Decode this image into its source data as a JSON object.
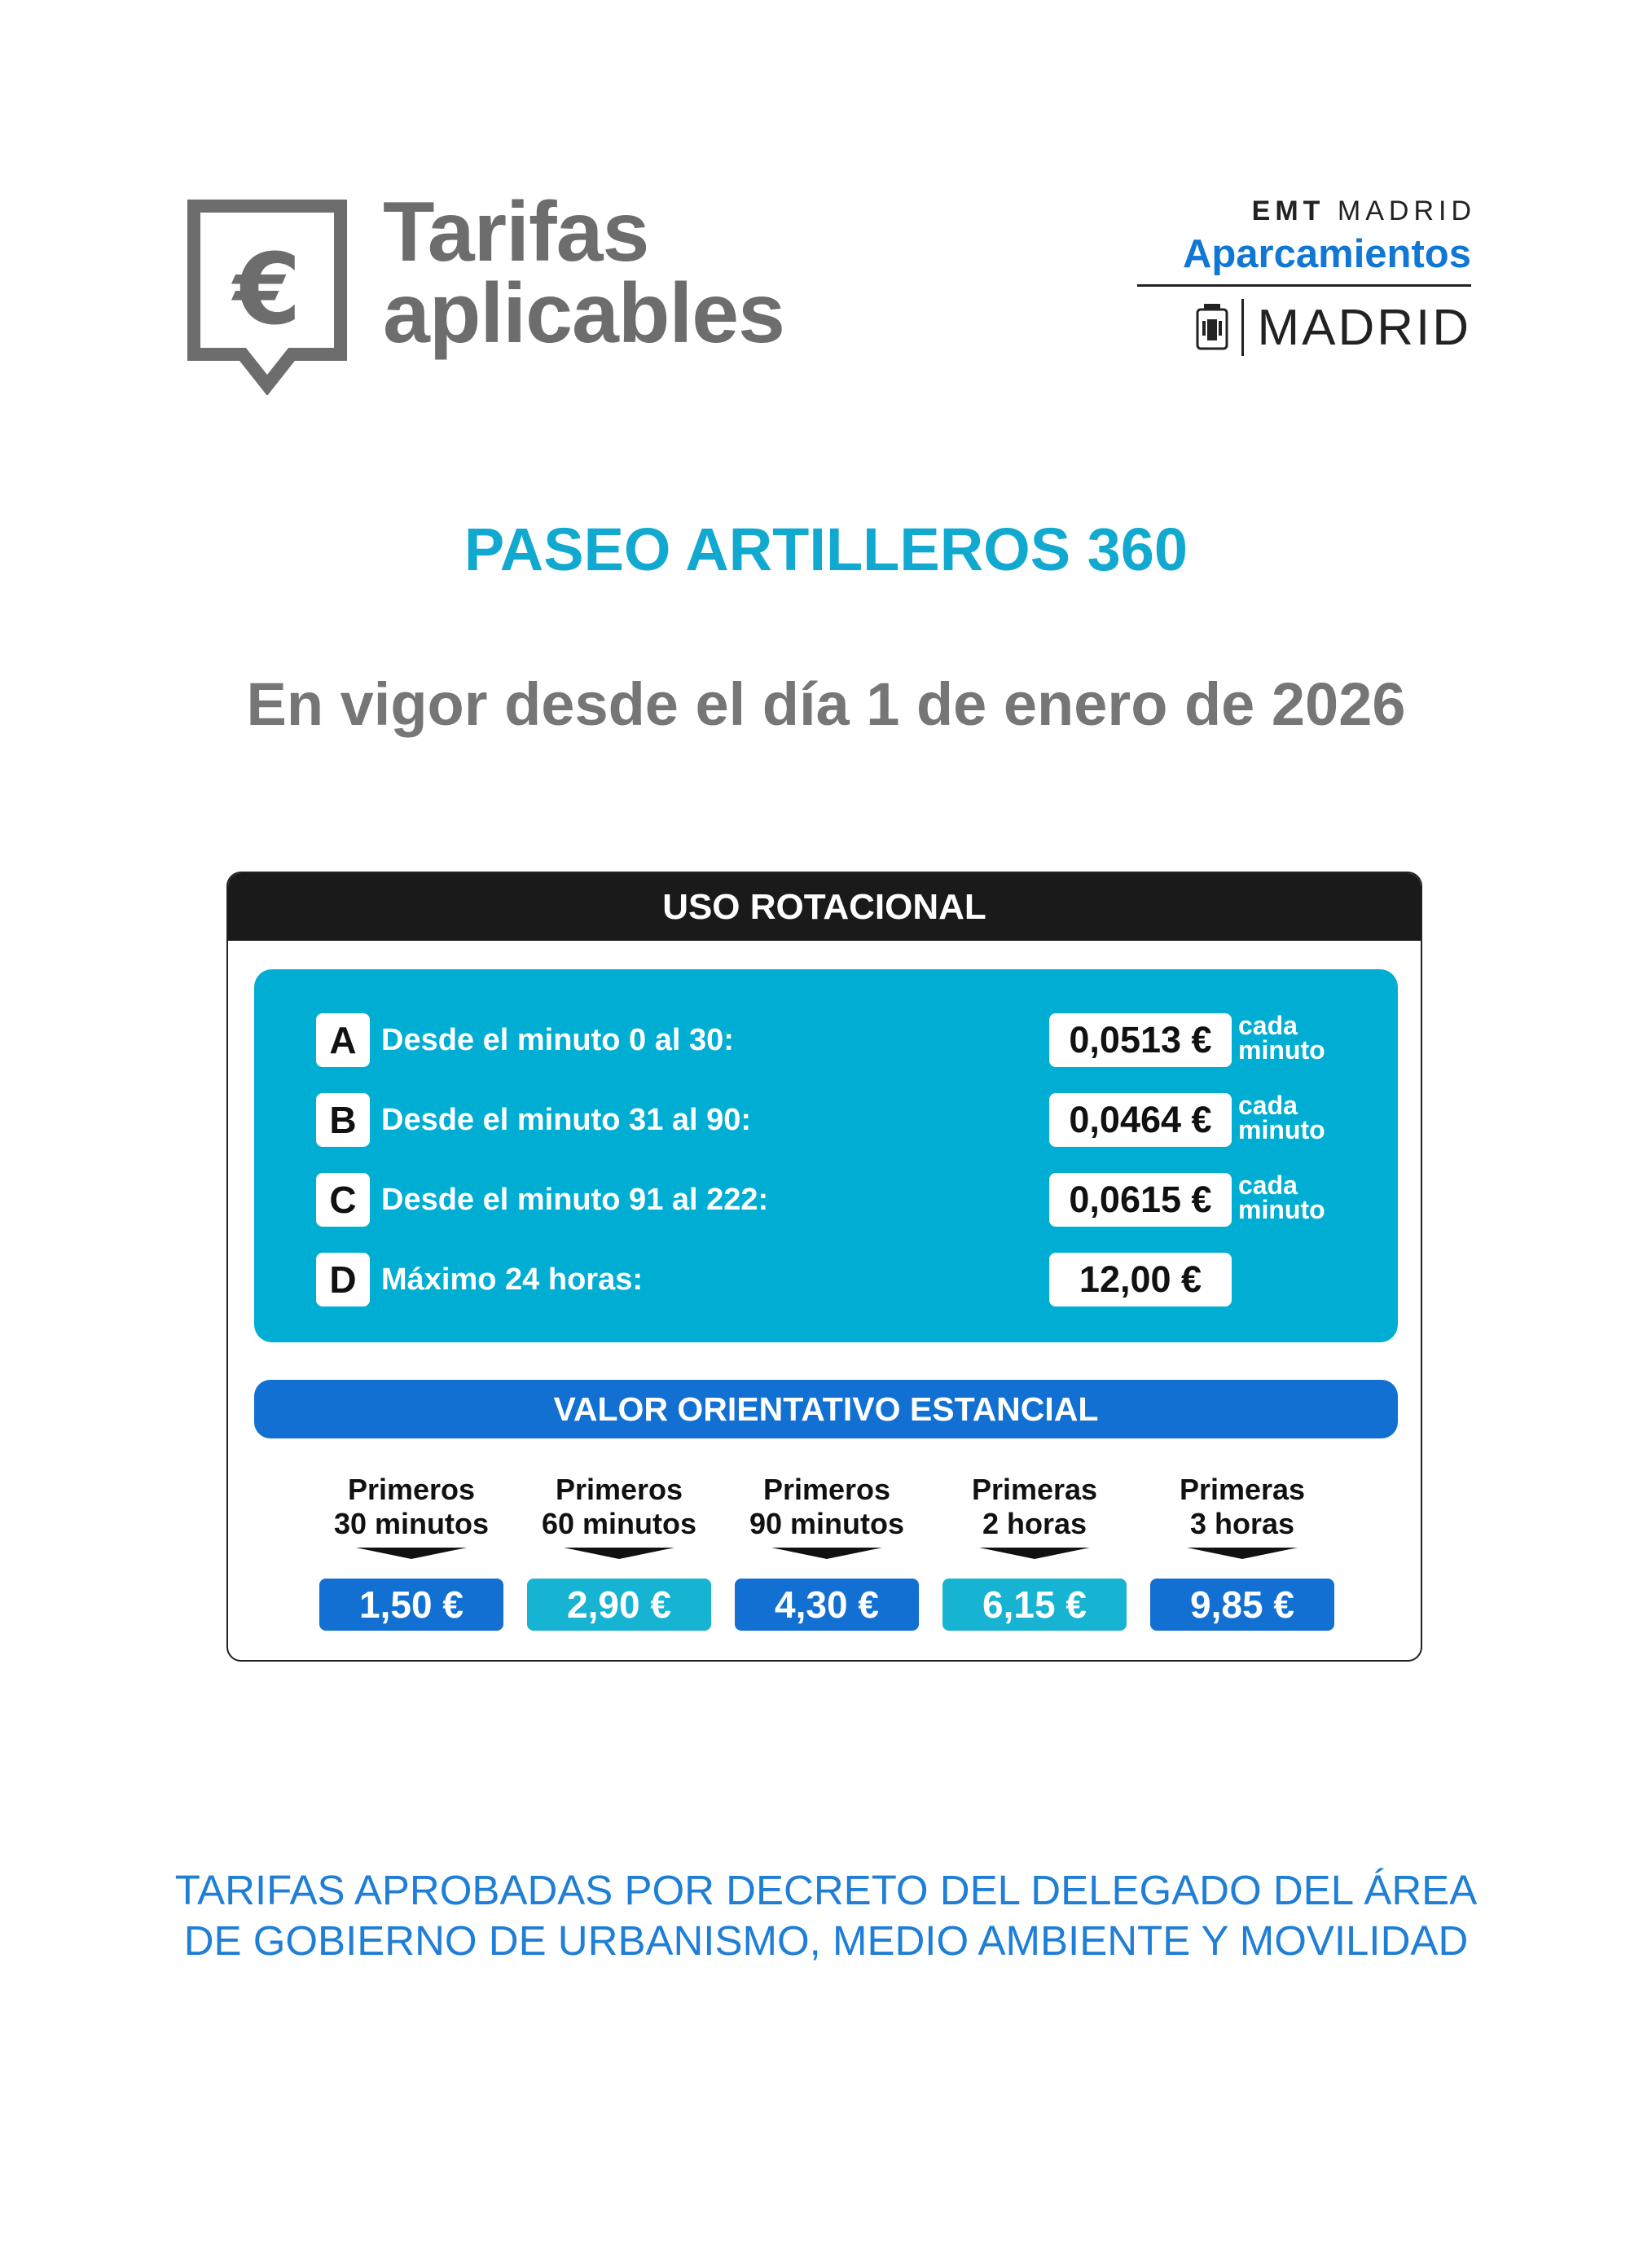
{
  "header": {
    "title_line1": "Tarifas",
    "title_line2": "aplicables",
    "icon": "euro-sign-icon",
    "emt_bold": "EMT",
    "emt_light": "MADRID",
    "aparcamientos": "Aparcamientos",
    "madrid": "MADRID",
    "crest_icon": "madrid-crest-icon"
  },
  "location": "PASEO ARTILLEROS 360",
  "vigor": "En vigor desde el día 1 de enero de 2026",
  "rotacional": {
    "title": "USO ROTACIONAL",
    "rows": [
      {
        "letter": "A",
        "label": "Desde el minuto 0 al 30:",
        "price": "0,0513 €",
        "unit_line1": "cada",
        "unit_line2": "minuto"
      },
      {
        "letter": "B",
        "label": "Desde el minuto 31 al 90:",
        "price": "0,0464 €",
        "unit_line1": "cada",
        "unit_line2": "minuto"
      },
      {
        "letter": "C",
        "label": "Desde el minuto 91 al 222:",
        "price": "0,0615 €",
        "unit_line1": "cada",
        "unit_line2": "minuto"
      },
      {
        "letter": "D",
        "label": "Máximo 24 horas:",
        "price": "12,00 €",
        "unit_line1": "",
        "unit_line2": ""
      }
    ]
  },
  "valor": {
    "title": "VALOR ORIENTATIVO ESTANCIAL",
    "items": [
      {
        "line1": "Primeros",
        "line2": "30 minutos",
        "price": "1,50 €",
        "color": "#1170d2"
      },
      {
        "line1": "Primeros",
        "line2": "60 minutos",
        "price": "2,90 €",
        "color": "#16b3d3"
      },
      {
        "line1": "Primeros",
        "line2": "90 minutos",
        "price": "4,30 €",
        "color": "#1170d2"
      },
      {
        "line1": "Primeras",
        "line2": "2 horas",
        "price": "6,15 €",
        "color": "#16b3d3"
      },
      {
        "line1": "Primeras",
        "line2": "3 horas",
        "price": "9,85 €",
        "color": "#1170d2"
      }
    ]
  },
  "footer": {
    "line1": "TARIFAS APROBADAS POR DECRETO DEL DELEGADO DEL ÁREA",
    "line2": "DE GOBIERNO DE URBANISMO, MEDIO AMBIENTE Y MOVILIDAD"
  },
  "colors": {
    "title_gray": "#6d6d6d",
    "cyan": "#00aed4",
    "blue": "#1170d2",
    "location_cyan": "#11a9cf",
    "footer_blue": "#1f7ed6"
  }
}
